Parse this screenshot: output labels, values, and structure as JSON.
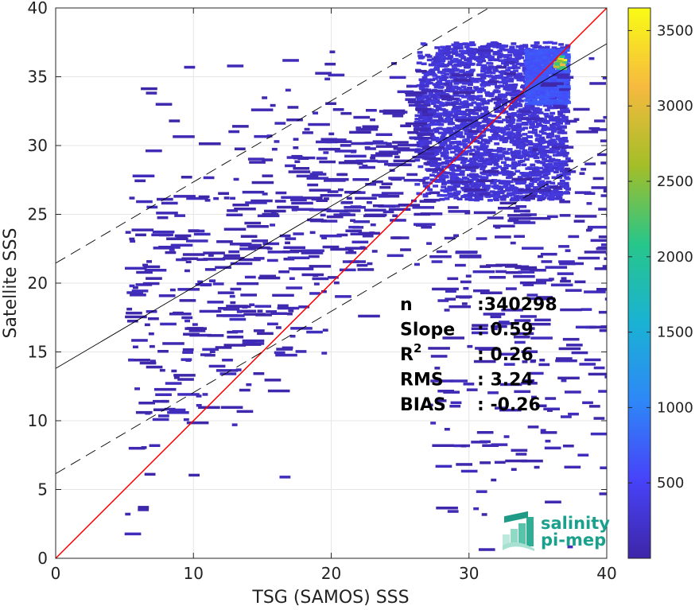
{
  "chart_data": {
    "type": "heatmap",
    "title": "",
    "xlabel": "TSG (SAMOS) SSS",
    "ylabel": "Satellite SSS",
    "xlim": [
      0,
      40
    ],
    "ylim": [
      0,
      40
    ],
    "x_ticks": [
      0,
      10,
      20,
      30,
      40
    ],
    "y_ticks": [
      0,
      5,
      10,
      15,
      20,
      25,
      30,
      35,
      40
    ],
    "grid": true,
    "colormap": "parula",
    "colorbar": {
      "range": [
        0,
        3650
      ],
      "ticks": [
        500,
        1000,
        1500,
        2000,
        2500,
        3000,
        3500
      ],
      "colors": [
        "#3e26a8",
        "#4743f9",
        "#2e87f7",
        "#1ab2d4",
        "#27c68a",
        "#a4be27",
        "#f6ba3f",
        "#f9fb15"
      ]
    },
    "density_regions": [
      {
        "x": [
          26,
          37
        ],
        "y": [
          26,
          37.5
        ],
        "level": "medium"
      },
      {
        "x": [
          34,
          37
        ],
        "y": [
          33,
          37
        ],
        "level": "high"
      },
      {
        "x": [
          36.1,
          36.8
        ],
        "y": [
          35.6,
          36.5
        ],
        "level": "peak",
        "peak_count": 3600
      },
      {
        "x": [
          5,
          40
        ],
        "y": [
          0.3,
          37
        ],
        "level": "sparse"
      }
    ],
    "lines": [
      {
        "name": "one-to-one",
        "color": "#ff0000",
        "x": [
          0,
          40
        ],
        "y": [
          0,
          40
        ],
        "style": "solid"
      },
      {
        "name": "regression",
        "color": "#000000",
        "x": [
          0,
          40
        ],
        "y": [
          13.8,
          37.4
        ],
        "style": "solid"
      },
      {
        "name": "upper-bound",
        "color": "#000000",
        "x": [
          0,
          40
        ],
        "y": [
          21.45,
          45.05
        ],
        "style": "dashed"
      },
      {
        "name": "lower-bound",
        "color": "#000000",
        "x": [
          0,
          40
        ],
        "y": [
          6.15,
          29.75
        ],
        "style": "dashed"
      }
    ],
    "stats": [
      {
        "label": "n",
        "sup": "",
        "value": ":340298"
      },
      {
        "label": "Slope",
        "sup": "",
        "value": ": 0.59"
      },
      {
        "label": "R",
        "sup": "2",
        "value": ": 0.26"
      },
      {
        "label": "RMS",
        "sup": "",
        "value": ": 3.24"
      },
      {
        "label": "BIAS",
        "sup": "",
        "value": ": -0.26"
      }
    ]
  },
  "logo": {
    "line1": "salinity",
    "line2": "pi-mep",
    "color": "#1aa08c"
  }
}
